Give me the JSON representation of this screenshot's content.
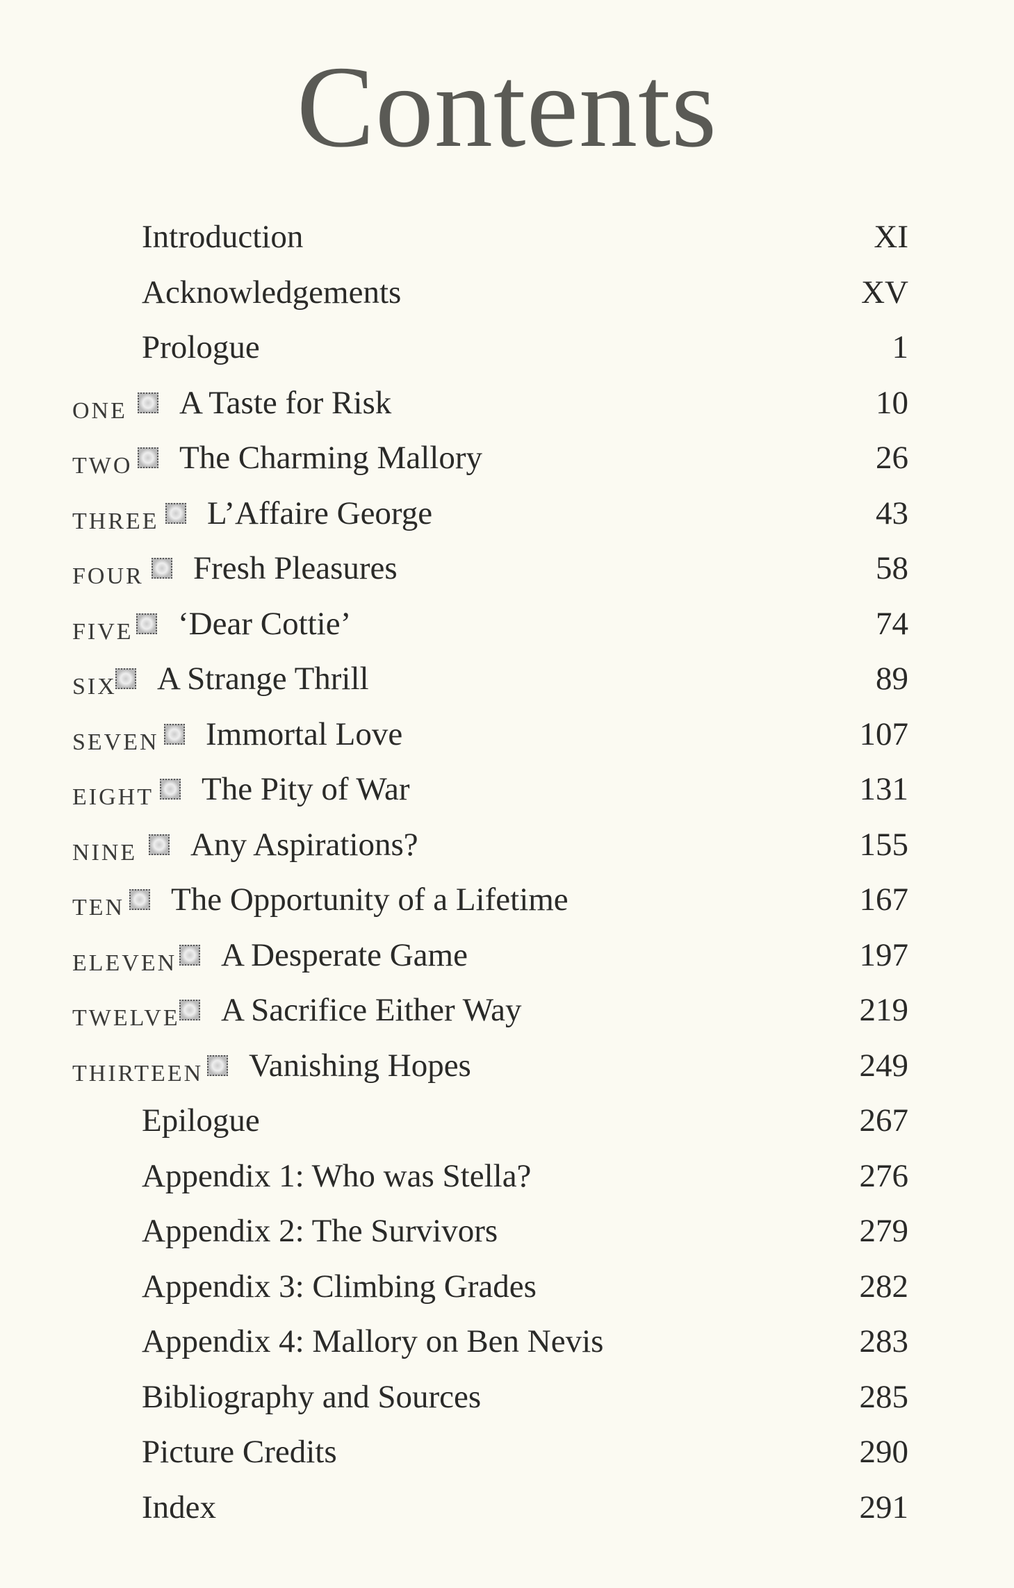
{
  "title": "Contents",
  "entries": [
    {
      "number": "",
      "title": "Introduction",
      "page": "XI"
    },
    {
      "number": "",
      "title": "Acknowledgements",
      "page": "XV"
    },
    {
      "number": "",
      "title": "Prologue",
      "page": "1"
    },
    {
      "number": "ONE",
      "title": "A Taste for Risk",
      "page": "10"
    },
    {
      "number": "TWO",
      "title": "The Charming Mallory",
      "page": "26"
    },
    {
      "number": "THREE",
      "title": "L’Affaire George",
      "page": "43"
    },
    {
      "number": "FOUR",
      "title": "Fresh Pleasures",
      "page": "58"
    },
    {
      "number": "FIVE",
      "title": "‘Dear Cottie’",
      "page": "74"
    },
    {
      "number": "SIX",
      "title": "A Strange Thrill",
      "page": "89"
    },
    {
      "number": "SEVEN",
      "title": "Immortal Love",
      "page": "107"
    },
    {
      "number": "EIGHT",
      "title": "The Pity of War",
      "page": "131"
    },
    {
      "number": "NINE",
      "title": "Any Aspirations?",
      "page": "155"
    },
    {
      "number": "TEN",
      "title": "The Opportunity of a Lifetime",
      "page": "167"
    },
    {
      "number": "ELEVEN",
      "title": "A Desperate Game",
      "page": "197"
    },
    {
      "number": "TWELVE",
      "title": "A Sacrifice Either Way",
      "page": "219"
    },
    {
      "number": "THIRTEEN",
      "title": "Vanishing Hopes",
      "page": "249"
    },
    {
      "number": "",
      "title": "Epilogue",
      "page": "267"
    },
    {
      "number": "",
      "title": "Appendix 1: Who was Stella?",
      "page": "276"
    },
    {
      "number": "",
      "title": "Appendix 2: The Survivors",
      "page": "279"
    },
    {
      "number": "",
      "title": "Appendix 3: Climbing Grades",
      "page": "282"
    },
    {
      "number": "",
      "title": "Appendix 4: Mallory on Ben Nevis",
      "page": "283"
    },
    {
      "number": "",
      "title": "Bibliography and Sources",
      "page": "285"
    },
    {
      "number": "",
      "title": "Picture Credits",
      "page": "290"
    },
    {
      "number": "",
      "title": "Index",
      "page": "291"
    }
  ],
  "ornament_icon": "dotted-square-ornament"
}
